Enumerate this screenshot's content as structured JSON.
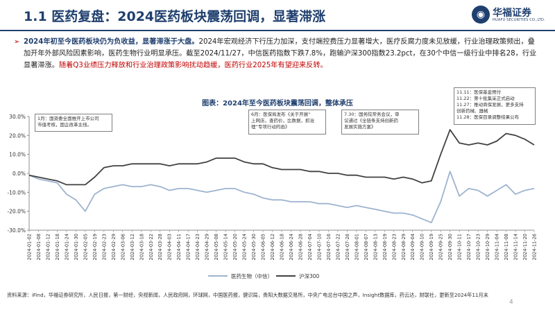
{
  "header": {
    "title": "1.1 医药复盘：2024医药板块震荡回调，显著滞涨",
    "logo_cn": "华福证券",
    "logo_en": "HUAFU SECURITIES CO.,LTD."
  },
  "summary": {
    "lead": "2024年初至今医药板块仍为负收益，显著滞涨于大盘。",
    "body": "2024年宏观经济下行压力加深，支付端控费压力显著增大，医疗反腐力度未见放缓，行业治理政策频出，叠加开年外部风险因素影响，医药生物行业明显承压。截至2024/11/27，中信医药指数下跌7.8%，跑输沪深300指数23.2pct，在30个中信一级行业中排名28，行业显著滞涨。",
    "outlook": "随着Q3业绩压力释放和行业治理政策影响扰动趋缓，医药行业2025年有望迎来反转。"
  },
  "chart_title": "图表：2024年至今医药板块震荡回调，整体承压",
  "annotations": [
    {
      "lines": [
        "1月：国资委全面推开上市公司",
        "市值考核，国企改革主线。"
      ]
    },
    {
      "lines": [
        "6月：医保局发布《关于开展“",
        "上网店，查药价，比数据，抓治",
        "理”专项行动的函》"
      ]
    },
    {
      "lines": [
        "7.30：国务院常务会议，审",
        "议通过《全链条支持创新药",
        "发展实施方案》"
      ]
    },
    {
      "lines": [
        "11.11：医保基金预付",
        "11.22：第十批集采正式启动",
        "11.27：推动商保发展，更多支持",
        "创新药械、器械",
        "11.28：医保目录调整结果公布"
      ]
    }
  ],
  "legend": [
    "医药生物（中信）",
    "沪深300"
  ],
  "footer": {
    "source": "资料来源：iFind，华福证券研究所，人民日报，第一财经，央视新闻，人民政府网，环球网，中国医药报，健识局，贵阳大数据交易所，中央广电总台中国之声，Insight数据库，药云达，财联社，更新至2024年11月末",
    "page": "4"
  },
  "colors": {
    "pharma": "#9db3cf",
    "csi300": "#404040",
    "title": "#1f3f6e",
    "highlight": "#c00000"
  },
  "chart_data": {
    "type": "line",
    "title": "图表：2024年至今医药板块震荡回调，整体承压",
    "ylim": [
      -30,
      30
    ],
    "yticks": [
      "30.0%",
      "20.0%",
      "10.0%",
      "0.0%",
      "-10.0%",
      "-20.0%",
      "-30.0%"
    ],
    "x": [
      "2024-01-02",
      "2024-01-08",
      "2024-01-12",
      "2024-01-18",
      "2024-01-24",
      "2024-01-30",
      "2024-02-05",
      "2024-02-19",
      "2024-02-23",
      "2024-02-29",
      "2024-03-06",
      "2024-03-12",
      "2024-03-18",
      "2024-03-22",
      "2024-03-28",
      "2024-04-03",
      "2024-04-11",
      "2024-04-17",
      "2024-04-23",
      "2024-04-29",
      "2024-05-08",
      "2024-05-14",
      "2024-05-20",
      "2024-05-24",
      "2024-05-30",
      "2024-06-05",
      "2024-06-12",
      "2024-06-18",
      "2024-06-24",
      "2024-06-28",
      "2024-07-04",
      "2024-07-10",
      "2024-07-16",
      "2024-07-22",
      "2024-07-26",
      "2024-08-01",
      "2024-08-07",
      "2024-08-13",
      "2024-08-19",
      "2024-08-23",
      "2024-08-29",
      "2024-09-04",
      "2024-09-10",
      "2024-09-19",
      "2024-09-25",
      "2024-09-30",
      "2024-10-11",
      "2024-10-17",
      "2024-10-23",
      "2024-10-29",
      "2024-11-04",
      "2024-11-08",
      "2024-11-14",
      "2024-11-20",
      "2024-11-26"
    ],
    "series": [
      {
        "name": "医药生物（中信）",
        "values": [
          -1,
          -3,
          -4,
          -5,
          -11,
          -14,
          -20,
          -11,
          -8,
          -7,
          -6,
          -7,
          -7,
          -6,
          -7,
          -9,
          -8,
          -8,
          -9,
          -10,
          -9,
          -8,
          -8,
          -10,
          -11,
          -13,
          -14,
          -14,
          -15,
          -15,
          -15,
          -16,
          -16,
          -17,
          -18,
          -17,
          -18,
          -19,
          -20,
          -21,
          -21,
          -22,
          -24,
          -26,
          -15,
          1,
          -12,
          -8,
          -9,
          -12,
          -9,
          -6,
          -11,
          -9,
          -8
        ]
      },
      {
        "name": "沪深300",
        "values": [
          -1,
          -2,
          -3,
          -4,
          -6,
          -6,
          -6,
          -2,
          3,
          4,
          4,
          5,
          5,
          5,
          5,
          4,
          5,
          5,
          5,
          6,
          8,
          8,
          8,
          6,
          5,
          5,
          3,
          2,
          2,
          2,
          1,
          1,
          0,
          0,
          -1,
          -1,
          -2,
          -2,
          -2,
          -3,
          -2,
          -3,
          -5,
          -4,
          10,
          23,
          16,
          15,
          16,
          15,
          17,
          21,
          20,
          18,
          15
        ]
      }
    ],
    "legend": [
      "医药生物（中信）",
      "沪深300"
    ],
    "legend_position": "bottom",
    "grid": false
  }
}
